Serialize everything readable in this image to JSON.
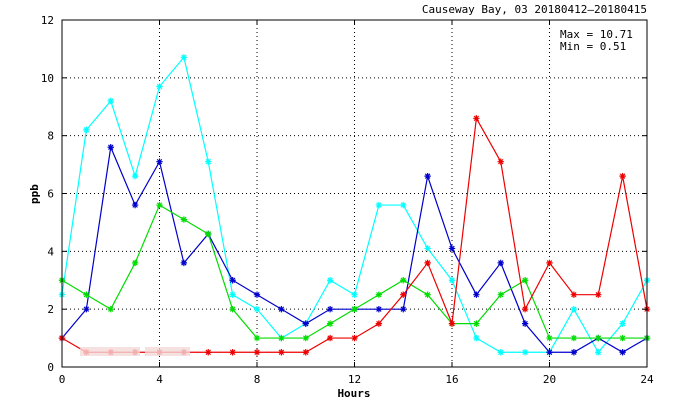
{
  "chart_data": {
    "type": "line",
    "title": "Causeway Bay, 03 20180412–20180415",
    "xlabel": "Hours",
    "ylabel": "ppb",
    "xlim": [
      0,
      24
    ],
    "ylim": [
      0,
      12
    ],
    "x_ticks": [
      0,
      4,
      8,
      12,
      16,
      20,
      24
    ],
    "y_ticks": [
      0,
      2,
      4,
      6,
      8,
      10,
      12
    ],
    "grid": true,
    "grid_style": "dotted",
    "marker": "asterisk",
    "stats": {
      "max_label": "Max = 10.71",
      "min_label": "Min =  0.51"
    },
    "x": [
      0,
      1,
      2,
      3,
      4,
      5,
      6,
      7,
      8,
      9,
      10,
      11,
      12,
      13,
      14,
      15,
      16,
      17,
      18,
      19,
      20,
      21,
      22,
      23,
      24
    ],
    "series": [
      {
        "color": "#00ffff",
        "values": [
          2.5,
          8.2,
          9.2,
          6.6,
          9.7,
          10.71,
          7.1,
          2.5,
          2.0,
          1.0,
          1.5,
          3.0,
          2.5,
          5.6,
          5.6,
          4.1,
          3.0,
          1.0,
          0.51,
          0.51,
          0.51,
          2.0,
          0.51,
          1.5,
          3.0
        ]
      },
      {
        "color": "#0000cc",
        "values": [
          1.0,
          2.0,
          7.6,
          5.6,
          7.1,
          3.6,
          4.6,
          3.0,
          2.5,
          2.0,
          1.5,
          2.0,
          2.0,
          2.0,
          2.0,
          6.6,
          4.1,
          2.5,
          3.6,
          1.5,
          0.51,
          0.51,
          1.0,
          0.51,
          1.0
        ]
      },
      {
        "color": "#00dd00",
        "values": [
          3.0,
          2.5,
          2.0,
          3.6,
          5.6,
          5.1,
          4.6,
          2.0,
          1.0,
          1.0,
          1.0,
          1.5,
          2.0,
          2.5,
          3.0,
          2.5,
          1.5,
          1.5,
          2.5,
          3.0,
          1.0,
          1.0,
          1.0,
          1.0,
          1.0
        ]
      },
      {
        "color": "#ee0000",
        "values": [
          1.0,
          0.51,
          0.51,
          0.51,
          0.51,
          0.51,
          0.51,
          0.51,
          0.51,
          0.51,
          0.51,
          1.0,
          1.0,
          1.5,
          2.5,
          3.6,
          1.5,
          8.6,
          7.1,
          2.0,
          3.6,
          2.5,
          2.5,
          6.6,
          2.0
        ]
      }
    ]
  }
}
